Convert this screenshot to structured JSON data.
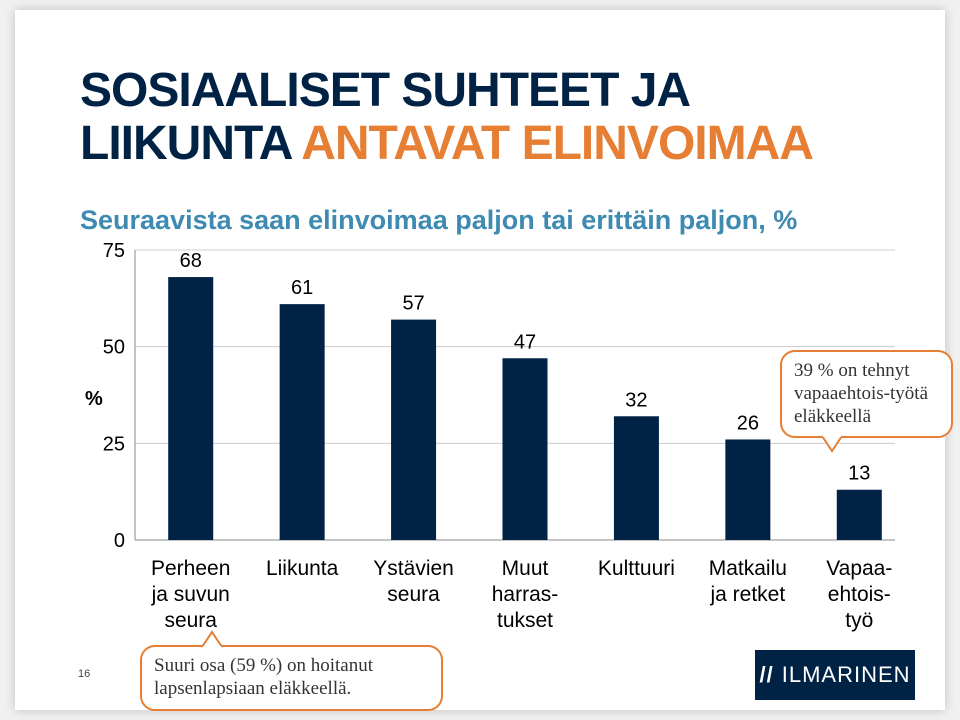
{
  "title_line1": "SOSIAALISET SUHTEET JA",
  "title_line2_part1": "LIIKUNTA",
  "title_line2_part2": "ANTAVAT ELINVOIMAA",
  "subtitle": "Seuraavista saan elinvoimaa paljon tai erittäin paljon, %",
  "callout_1": "39 % on tehnyt vapaaehtois-työtä eläkkeellä",
  "callout_2": "Suuri osa (59 %) on hoitanut lapsenlapsiaan eläkkeellä.",
  "page_number": "16",
  "logo_text": "ILMARINEN",
  "logo_icon": "ILMARINEN-logo-icon",
  "chart_data": {
    "type": "bar",
    "categories": [
      [
        "Perheen",
        "ja suvun",
        "seura"
      ],
      [
        "Liikunta"
      ],
      [
        "Ystävien",
        "seura"
      ],
      [
        "Muut",
        "harras-",
        "tukset"
      ],
      [
        "Kulttuuri"
      ],
      [
        "Matkailu",
        "ja retket"
      ],
      [
        "Vapaa-",
        "ehtois-",
        "työ"
      ]
    ],
    "values": [
      68,
      61,
      57,
      47,
      32,
      26,
      13
    ],
    "ylabel": "%",
    "ylim": [
      0,
      75
    ],
    "yticks": [
      0,
      25,
      50,
      75
    ],
    "bar_color": "#002244"
  }
}
